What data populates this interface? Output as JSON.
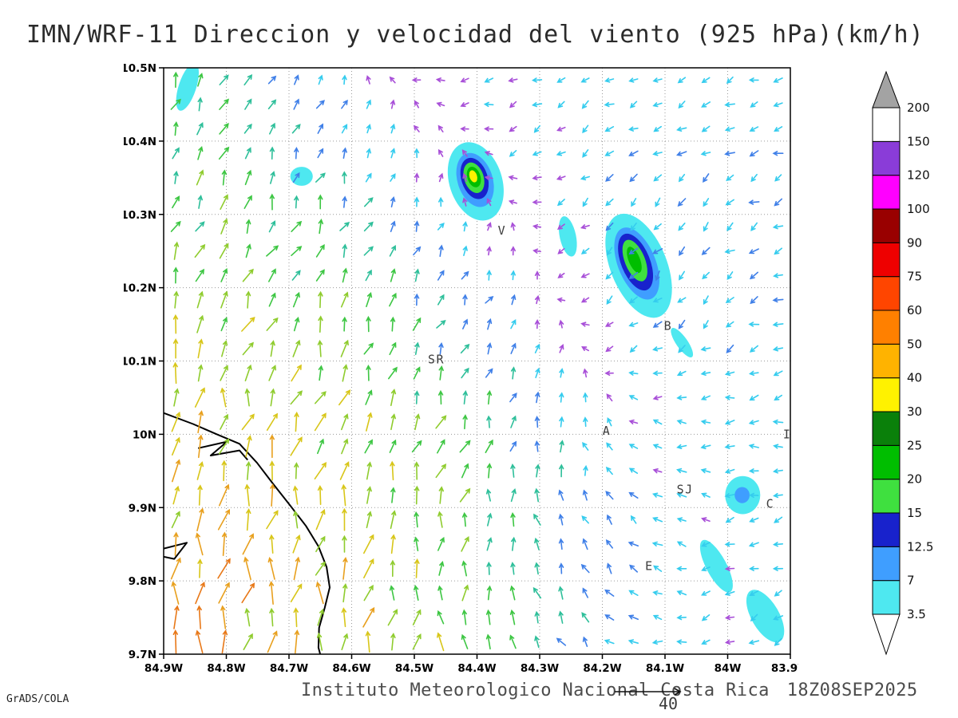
{
  "title": "IMN/WRF-11 Direccion y velocidad del viento (925 hPa)(km/h)",
  "footer": {
    "institute": "Instituto Meteorologico Nacional Costa Rica",
    "datetime": "18Z08SEP2025",
    "credit": "GrADS/COLA",
    "ref_vector_label": "40"
  },
  "chart_data": {
    "type": "vector_field",
    "variable": "Direccion y velocidad del viento",
    "level": "925 hPa",
    "units": "km/h",
    "grid": "dotted",
    "x_axis": {
      "labels": [
        "84.9W",
        "84.8W",
        "84.7W",
        "84.6W",
        "84.5W",
        "84.4W",
        "84.3W",
        "84.2W",
        "84.1W",
        "84W",
        "83.9W"
      ],
      "min": -84.9,
      "max": -83.9
    },
    "y_axis": {
      "labels": [
        "10.5N",
        "10.4N",
        "10.3N",
        "10.2N",
        "10.1N",
        "10N",
        "9.9N",
        "9.8N",
        "9.7N"
      ],
      "min": 9.7,
      "max": 10.5
    },
    "colorbar": {
      "position": "right",
      "levels": [
        3.5,
        7,
        12.5,
        15,
        20,
        25,
        30,
        40,
        50,
        60,
        75,
        90,
        100,
        120,
        150,
        200
      ],
      "segment_colors": [
        "#4EE8F0",
        "#3F9EFF",
        "#1822CC",
        "#3FE03F",
        "#00BE00",
        "#0A800A",
        "#FFF200",
        "#FFB300",
        "#FF8000",
        "#FF4500",
        "#EE0000",
        "#990000",
        "#FF00FF",
        "#8A3CD8",
        "#FFFFFF"
      ],
      "under_color": "#FFFFFF",
      "over_color": "#A3A3A3"
    },
    "stations": [
      {
        "label": "V",
        "lon": -84.36,
        "lat": 10.278
      },
      {
        "label": "SR",
        "lon": -84.465,
        "lat": 10.102
      },
      {
        "label": "B",
        "lon": -84.095,
        "lat": 10.148
      },
      {
        "label": "A",
        "lon": -84.193,
        "lat": 10.005
      },
      {
        "label": "SJ",
        "lon": -84.068,
        "lat": 9.925
      },
      {
        "label": "C",
        "lon": -83.932,
        "lat": 9.905
      },
      {
        "label": "E",
        "lon": -84.125,
        "lat": 9.82
      },
      {
        "label": "I",
        "lon": -83.905,
        "lat": 10.0
      }
    ],
    "shaded_cells": [
      {
        "lon": -84.862,
        "lat": 10.474,
        "rx": 0.014,
        "ry": 0.034,
        "rot": 18,
        "color": "#4EE8F0"
      },
      {
        "lon": -84.68,
        "lat": 10.352,
        "rx": 0.018,
        "ry": 0.013,
        "rot": 0,
        "color": "#4EE8F0"
      },
      {
        "lon": -84.402,
        "lat": 10.345,
        "rx": 0.042,
        "ry": 0.055,
        "rot": -18,
        "color": "#4EE8F0"
      },
      {
        "lon": -84.403,
        "lat": 10.347,
        "rx": 0.028,
        "ry": 0.038,
        "rot": -18,
        "color": "#3F9EFF"
      },
      {
        "lon": -84.404,
        "lat": 10.349,
        "rx": 0.021,
        "ry": 0.029,
        "rot": -18,
        "color": "#1822CC"
      },
      {
        "lon": -84.405,
        "lat": 10.35,
        "rx": 0.0155,
        "ry": 0.0215,
        "rot": -18,
        "color": "#3FE03F"
      },
      {
        "lon": -84.405,
        "lat": 10.351,
        "rx": 0.0105,
        "ry": 0.0145,
        "rot": -18,
        "color": "#00BE00"
      },
      {
        "lon": -84.406,
        "lat": 10.352,
        "rx": 0.006,
        "ry": 0.0085,
        "rot": -18,
        "color": "#FFF200"
      },
      {
        "lon": -84.255,
        "lat": 10.27,
        "rx": 0.013,
        "ry": 0.028,
        "rot": -12,
        "color": "#4EE8F0"
      },
      {
        "lon": -84.142,
        "lat": 10.23,
        "rx": 0.045,
        "ry": 0.075,
        "rot": -22,
        "color": "#4EE8F0"
      },
      {
        "lon": -84.145,
        "lat": 10.233,
        "rx": 0.03,
        "ry": 0.052,
        "rot": -22,
        "color": "#3F9EFF"
      },
      {
        "lon": -84.147,
        "lat": 10.235,
        "rx": 0.023,
        "ry": 0.041,
        "rot": -22,
        "color": "#1822CC"
      },
      {
        "lon": -84.148,
        "lat": 10.237,
        "rx": 0.016,
        "ry": 0.03,
        "rot": -22,
        "color": "#3FE03F"
      },
      {
        "lon": -84.149,
        "lat": 10.238,
        "rx": 0.009,
        "ry": 0.019,
        "rot": -22,
        "color": "#00BE00"
      },
      {
        "lon": -84.073,
        "lat": 10.125,
        "rx": 0.009,
        "ry": 0.024,
        "rot": -35,
        "color": "#4EE8F0"
      },
      {
        "lon": -83.976,
        "lat": 9.917,
        "rx": 0.028,
        "ry": 0.026,
        "rot": 0,
        "color": "#4EE8F0"
      },
      {
        "lon": -83.977,
        "lat": 9.917,
        "rx": 0.012,
        "ry": 0.011,
        "rot": 0,
        "color": "#3F9EFF"
      },
      {
        "lon": -84.018,
        "lat": 9.82,
        "rx": 0.016,
        "ry": 0.04,
        "rot": -28,
        "color": "#4EE8F0"
      },
      {
        "lon": -83.94,
        "lat": 9.752,
        "rx": 0.022,
        "ry": 0.04,
        "rot": -30,
        "color": "#4EE8F0"
      }
    ],
    "coastline": [
      [
        [
          -84.9,
          10.029
        ],
        [
          -84.853,
          10.014
        ],
        [
          -84.815,
          10.0
        ],
        [
          -84.779,
          9.987
        ],
        [
          -84.751,
          9.961
        ],
        [
          -84.726,
          9.933
        ],
        [
          -84.7,
          9.905
        ],
        [
          -84.673,
          9.875
        ],
        [
          -84.653,
          9.847
        ],
        [
          -84.64,
          9.819
        ],
        [
          -84.635,
          9.791
        ],
        [
          -84.643,
          9.763
        ],
        [
          -84.652,
          9.736
        ],
        [
          -84.653,
          9.709
        ],
        [
          -84.65,
          9.699
        ]
      ],
      [
        [
          -84.845,
          9.981
        ],
        [
          -84.799,
          9.99
        ],
        [
          -84.825,
          9.971
        ],
        [
          -84.779,
          9.978
        ],
        [
          -84.766,
          9.965
        ]
      ],
      [
        [
          -84.9,
          9.844
        ],
        [
          -84.863,
          9.852
        ],
        [
          -84.883,
          9.83
        ],
        [
          -84.9,
          9.833
        ]
      ]
    ],
    "reference_vector": {
      "speed": 40,
      "units": "km/h"
    },
    "flow_field": {
      "cols": 26,
      "rows": 24,
      "centers": [
        {
          "lon": -84.82,
          "lat": 9.78,
          "dir": 5,
          "speed": 48,
          "r": 0.33
        },
        {
          "lon": -84.62,
          "lat": 9.95,
          "dir": 15,
          "speed": 35,
          "r": 0.25
        },
        {
          "lon": -84.75,
          "lat": 10.25,
          "dir": 30,
          "speed": 22,
          "r": 0.28
        },
        {
          "lon": -84.45,
          "lat": 10.05,
          "dir": 55,
          "speed": 18,
          "r": 0.22
        },
        {
          "lon": -84.3,
          "lat": 9.8,
          "dir": 325,
          "speed": 17,
          "r": 0.25
        },
        {
          "lon": -84.4,
          "lat": 10.42,
          "dir": 235,
          "speed": 7,
          "r": 0.3
        },
        {
          "lon": -84.05,
          "lat": 10.42,
          "dir": 250,
          "speed": 6,
          "r": 0.3
        },
        {
          "lon": -83.95,
          "lat": 10.05,
          "dir": 265,
          "speed": 7,
          "r": 0.25
        },
        {
          "lon": -84.12,
          "lat": 10.22,
          "dir": 205,
          "speed": 14,
          "r": 0.15
        },
        {
          "lon": -84.05,
          "lat": 9.75,
          "dir": 210,
          "speed": 8,
          "r": 0.2
        }
      ],
      "palette": [
        {
          "max": 4.5,
          "color": "#A84FD8"
        },
        {
          "max": 8,
          "color": "#35CCEE"
        },
        {
          "max": 12,
          "color": "#4080E8"
        },
        {
          "max": 17,
          "color": "#2EBF9A"
        },
        {
          "max": 24,
          "color": "#3DC643"
        },
        {
          "max": 31,
          "color": "#8FCC2E"
        },
        {
          "max": 41,
          "color": "#D8C619"
        },
        {
          "max": 51,
          "color": "#E8A01E"
        },
        {
          "max": 64,
          "color": "#E87818"
        },
        {
          "max": 9999,
          "color": "#E03010"
        }
      ]
    }
  }
}
